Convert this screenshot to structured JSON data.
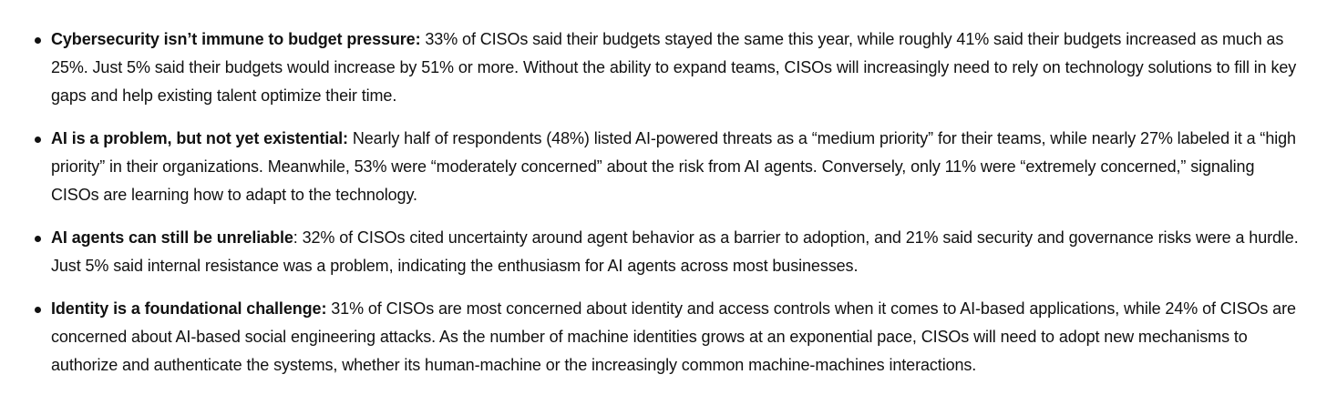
{
  "bullets": [
    {
      "lead": "Cybersecurity isn’t immune to budget pressure:",
      "body": " 33% of CISOs said their budgets stayed the same this year, while roughly 41% said their budgets increased as much as 25%. Just 5% said their budgets would increase by 51% or more. Without the ability to expand teams, CISOs will increasingly need to rely on technology solutions to fill in key gaps and help existing talent optimize their time."
    },
    {
      "lead": "AI is a problem, but not yet existential:",
      "body": " Nearly half of respondents (48%) listed AI-powered threats as a “medium priority” for their teams, while nearly 27% labeled it a “high priority” in their organizations. Meanwhile, 53% were “moderately concerned” about the risk from AI agents. Conversely, only 11% were “extremely concerned,” signaling CISOs are learning how to adapt to the technology."
    },
    {
      "lead": "AI agents can still be unreliable",
      "body": ": 32% of CISOs cited uncertainty around agent behavior as a barrier to adoption, and 21% said security and governance risks were a hurdle. Just 5% said internal resistance was a problem, indicating the enthusiasm for AI agents across most businesses."
    },
    {
      "lead": "Identity is a foundational challenge:",
      "body": " 31% of CISOs are most concerned about identity and access controls when it comes to AI-based applications, while 24% of CISOs are concerned about AI-based social engineering attacks. As the number of machine identities grows at an exponential pace, CISOs will need to adopt new mechanisms to authorize and authenticate the systems, whether its human-machine or the increasingly common machine-machines interactions."
    }
  ]
}
